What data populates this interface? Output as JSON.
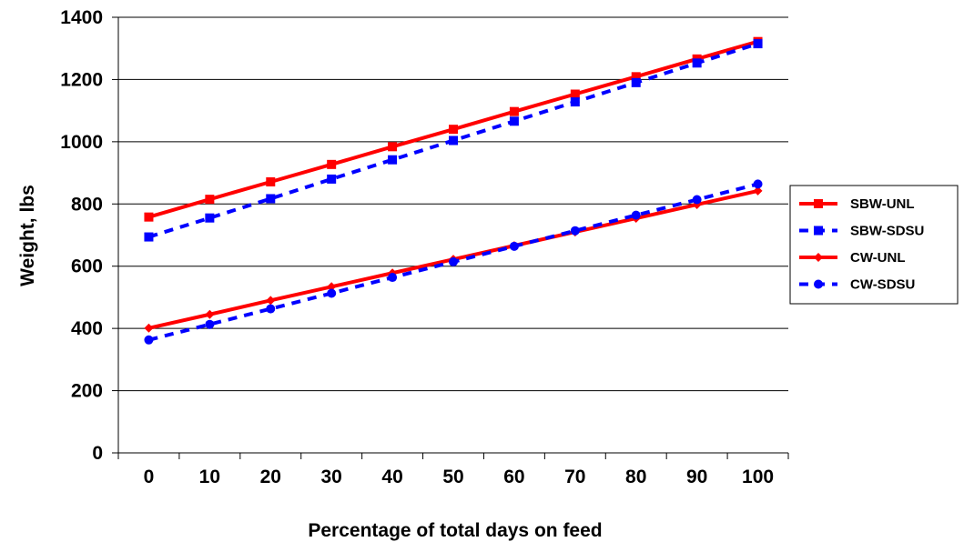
{
  "chart_data": {
    "type": "line",
    "title": "",
    "xlabel": "Percentage of total days on feed",
    "ylabel": "Weight, lbs",
    "x": [
      0,
      10,
      20,
      30,
      40,
      50,
      60,
      70,
      80,
      90,
      100
    ],
    "x_tick_labels": [
      "0",
      "10",
      "20",
      "30",
      "40",
      "50",
      "60",
      "70",
      "80",
      "90",
      "100"
    ],
    "y_tick_labels": [
      "0",
      "200",
      "400",
      "600",
      "800",
      "1000",
      "1200",
      "1400"
    ],
    "ylim": [
      0,
      1400
    ],
    "grid": "horizontal",
    "legend_position": "right",
    "series": [
      {
        "name": "SBW-UNL",
        "color": "#ff0000",
        "dash": "solid",
        "marker": "square",
        "values": [
          758,
          815,
          871,
          927,
          984,
          1040,
          1097,
          1153,
          1209,
          1266,
          1322
        ]
      },
      {
        "name": "SBW-SDSU",
        "color": "#0000ff",
        "dash": "dashed",
        "marker": "square",
        "values": [
          694,
          755,
          817,
          880,
          942,
          1004,
          1066,
          1128,
          1190,
          1253,
          1315
        ]
      },
      {
        "name": "CW-UNL",
        "color": "#ff0000",
        "dash": "solid",
        "marker": "diamond",
        "values": [
          401,
          445,
          490,
          534,
          578,
          622,
          666,
          710,
          754,
          798,
          842
        ]
      },
      {
        "name": "CW-SDSU",
        "color": "#0000ff",
        "dash": "dashed",
        "marker": "circle",
        "values": [
          363,
          413,
          463,
          513,
          564,
          614,
          664,
          714,
          764,
          814,
          864
        ]
      }
    ]
  }
}
